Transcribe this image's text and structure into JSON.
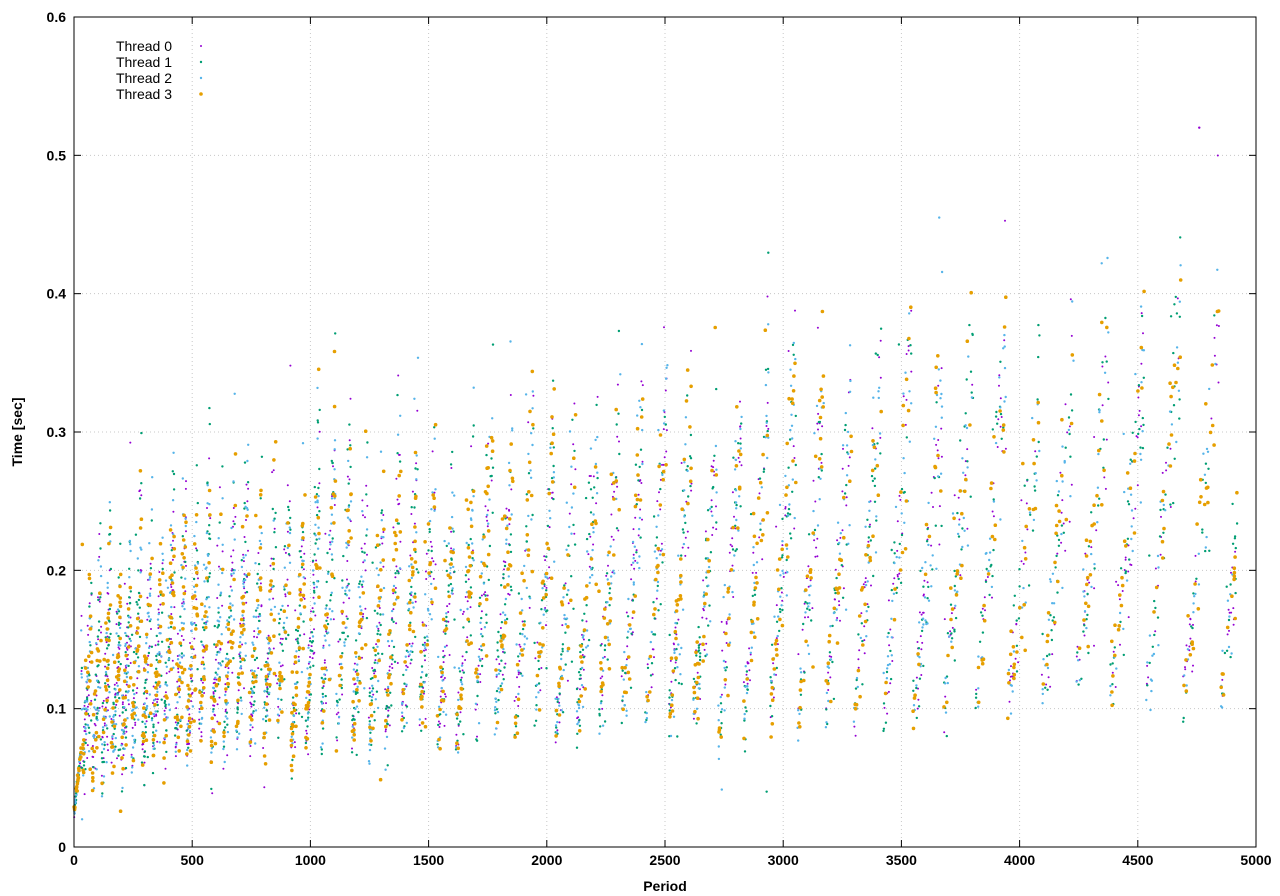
{
  "chart_data": {
    "type": "scatter",
    "title": "",
    "xlabel": "Period",
    "ylabel": "Time [sec]",
    "xlim": [
      0,
      5000
    ],
    "ylim": [
      0,
      0.6
    ],
    "x_ticks": [
      0,
      500,
      1000,
      1500,
      2000,
      2500,
      3000,
      3500,
      4000,
      4500,
      5000
    ],
    "y_ticks": [
      0,
      0.1,
      0.2,
      0.3,
      0.4,
      0.5,
      0.6
    ],
    "x_tick_labels": [
      "0",
      "500",
      "1000",
      "1500",
      "2000",
      "2500",
      "3000",
      "3500",
      "4000",
      "4500",
      "5000"
    ],
    "y_tick_labels": [
      "0",
      "0.1",
      "0.2",
      "0.3",
      "0.4",
      "0.5",
      "0.6"
    ],
    "grid": true,
    "legend_position": "top-left",
    "x_range_of_points": [
      0,
      4920
    ],
    "pattern": "sawtooth ramps; each ramp rises from a low of roughly 0.05–0.13 sec to a peak of roughly 0.13–0.48 sec; ramp period grows from about 40 to about 160 periods along x; values 0.02–0.52 sec",
    "series": [
      {
        "name": "Thread 0",
        "color": "#9400d3",
        "marker": "dot",
        "point_size": 1
      },
      {
        "name": "Thread 1",
        "color": "#009e73",
        "marker": "dot",
        "point_size": 1.2
      },
      {
        "name": "Thread 2",
        "color": "#56b4e9",
        "marker": "dot",
        "point_size": 1.2
      },
      {
        "name": "Thread 3",
        "color": "#e69f00",
        "marker": "dot",
        "point_size": 1.8
      }
    ],
    "outliers": [
      {
        "x": 4760,
        "y": 0.52
      },
      {
        "x": 2930,
        "y": 0.04
      },
      {
        "x": 3660,
        "y": 0.455
      }
    ]
  }
}
